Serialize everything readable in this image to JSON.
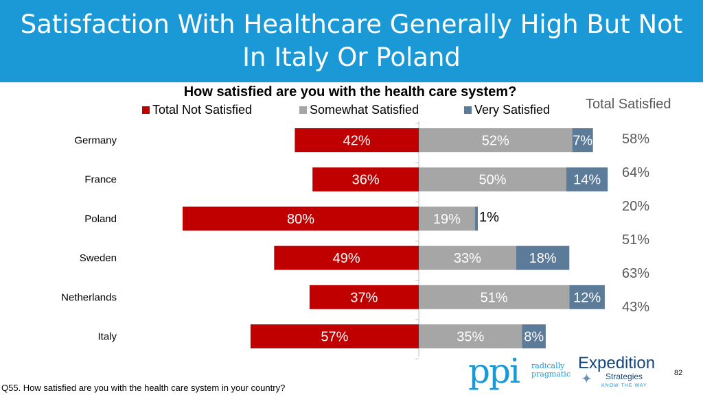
{
  "slide": {
    "title": "Satisfaction With Healthcare Generally High But Not In Italy Or Poland",
    "footnote": "Q55. How satisfied are you with the health care system in your country?",
    "page_number": "82"
  },
  "side_column": {
    "header": "Total Satisfied",
    "values": [
      "58%",
      "64%",
      "20%",
      "51%",
      "63%",
      "43%"
    ]
  },
  "logos": {
    "ppi_mark": "ppi",
    "ppi_tagline_1": "radically",
    "ppi_tagline_2": "pragmatic",
    "expedition_name": "Expedition",
    "expedition_sub": "Strategies",
    "expedition_tagline": "KNOW THE WAY"
  },
  "colors": {
    "title_bar": "#1b98d6",
    "not_satisfied": "#c00000",
    "somewhat": "#a6a6a6",
    "very": "#5b7b99"
  },
  "chart_data": {
    "type": "bar",
    "orientation": "horizontal",
    "stacking": "diverging",
    "title": "How satisfied are you with the health care system?",
    "categories": [
      "Germany",
      "France",
      "Poland",
      "Sweden",
      "Netherlands",
      "Italy"
    ],
    "series": [
      {
        "name": "Total Not Satisfied",
        "side": "negative",
        "color": "#c00000",
        "label_color": "#ffffff",
        "values": [
          42,
          36,
          80,
          49,
          37,
          57
        ],
        "labels": [
          "42%",
          "36%",
          "80%",
          "49%",
          "37%",
          "57%"
        ]
      },
      {
        "name": "Somewhat Satisfied",
        "side": "positive",
        "color": "#a6a6a6",
        "label_color": "#ffffff",
        "values": [
          52,
          50,
          19,
          33,
          51,
          35
        ],
        "labels": [
          "52%",
          "50%",
          "19%",
          "33%",
          "51%",
          "35%"
        ]
      },
      {
        "name": "Very Satisfied",
        "side": "positive",
        "color": "#5b7b99",
        "label_color": "#ffffff",
        "values": [
          7,
          14,
          1,
          18,
          12,
          8
        ],
        "labels": [
          "7%",
          "14%",
          "1%",
          "18%",
          "12%",
          "8%"
        ]
      }
    ],
    "legend_position": "top",
    "grid": false
  }
}
